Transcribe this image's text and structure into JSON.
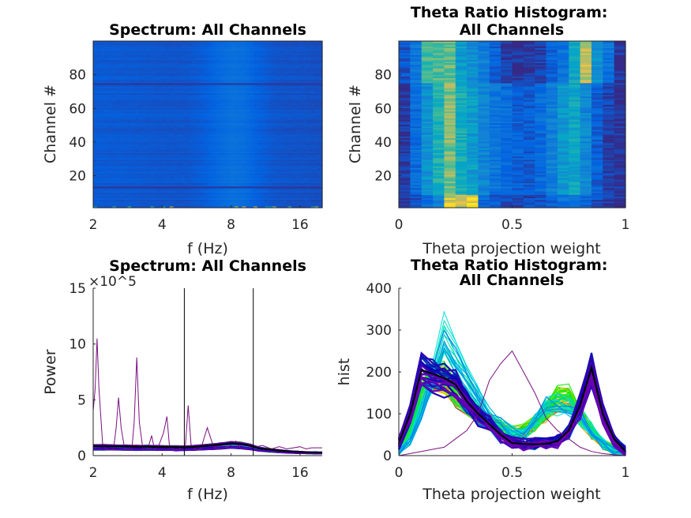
{
  "chart_data": [
    {
      "type": "heatmap",
      "title": "Spectrum: All Channels",
      "xlabel": "f (Hz)",
      "ylabel": "Channel #",
      "x_scale": "log",
      "xlim": [
        2,
        20
      ],
      "ylim": [
        1,
        100
      ],
      "xticks": [
        2,
        4,
        8,
        16
      ],
      "xtick_labels": [
        "2",
        "4",
        "8",
        "16"
      ],
      "yticks": [
        20,
        40,
        60,
        80
      ],
      "ytick_labels": [
        "20",
        "40",
        "60",
        "80"
      ],
      "colormap": "parula",
      "freq_profile_f": [
        2,
        3,
        4,
        5,
        6,
        7,
        8,
        9,
        10,
        12,
        14,
        16,
        18,
        20
      ],
      "freq_profile_level": [
        0.17,
        0.16,
        0.15,
        0.15,
        0.18,
        0.24,
        0.28,
        0.26,
        0.2,
        0.15,
        0.14,
        0.14,
        0.13,
        0.13
      ],
      "dark_rows": [
        13,
        75
      ]
    },
    {
      "type": "heatmap",
      "title": "Theta Ratio Histogram: All Channels",
      "xlabel": "Theta projection weight",
      "ylabel": "Channel #",
      "xlim": [
        0,
        1
      ],
      "ylim": [
        1,
        100
      ],
      "xticks": [
        0,
        0.5,
        1
      ],
      "xtick_labels": [
        "0",
        "0.5",
        "1"
      ],
      "yticks": [
        20,
        40,
        60,
        80
      ],
      "ytick_labels": [
        "20",
        "40",
        "60",
        "80"
      ],
      "colormap": "parula",
      "column_profile_channels_1_75": [
        0.05,
        0.25,
        0.45,
        0.62,
        0.78,
        0.6,
        0.5,
        0.4,
        0.3,
        0.25,
        0.2,
        0.18,
        0.25,
        0.35,
        0.48,
        0.55,
        0.4,
        0.2,
        0.08,
        0.03
      ],
      "column_profile_channels_76_100": [
        0.15,
        0.3,
        0.7,
        0.72,
        0.75,
        0.5,
        0.45,
        0.35,
        0.2,
        0.08,
        0.05,
        0.05,
        0.08,
        0.2,
        0.3,
        0.55,
        0.85,
        0.45,
        0.3,
        0.05
      ]
    },
    {
      "type": "line",
      "title": "Spectrum: All Channels",
      "xlabel": "f (Hz)",
      "ylabel": "Power",
      "exponent_label": "×10^5",
      "x_scale": "log",
      "xlim": [
        2,
        20
      ],
      "ylim": [
        0,
        15
      ],
      "xticks": [
        2,
        4,
        8,
        16
      ],
      "xtick_labels": [
        "2",
        "4",
        "8",
        "16"
      ],
      "yticks": [
        0,
        5,
        10,
        15
      ],
      "ytick_labels": [
        "0",
        "5",
        "10",
        "15"
      ],
      "vertical_lines_hz": [
        5,
        10
      ],
      "f": [
        2,
        2.2,
        2.5,
        2.8,
        3.1,
        3.4,
        3.8,
        4.2,
        4.6,
        5,
        5.5,
        6,
        6.6,
        7.2,
        8,
        8.8,
        9.7,
        10.6,
        11.7,
        12.9,
        14.2,
        15.6,
        17.2,
        18.9,
        20
      ],
      "mean_power": [
        0.85,
        0.85,
        0.83,
        0.82,
        0.8,
        0.8,
        0.78,
        0.77,
        0.76,
        0.75,
        0.78,
        0.85,
        0.92,
        1.0,
        1.08,
        1.05,
        0.9,
        0.65,
        0.55,
        0.45,
        0.38,
        0.33,
        0.3,
        0.28,
        0.27
      ],
      "outlier_f": [
        2,
        2.04,
        2.08,
        2.12,
        2.2,
        2.3,
        2.45,
        2.52,
        2.58,
        2.65,
        2.75,
        2.95,
        3.02,
        3.1,
        3.18,
        3.3,
        3.45,
        3.6,
        3.7,
        3.85,
        4.05,
        4.2,
        4.3,
        4.5,
        4.8,
        5.05,
        5.2,
        5.35,
        5.6,
        5.9,
        6.3,
        6.7,
        7.2,
        7.8,
        8.4,
        8.8,
        9.5,
        10.2,
        11,
        12,
        13,
        14,
        15,
        16,
        17,
        18,
        19,
        20
      ],
      "outlier_power": [
        4,
        6,
        10.5,
        6,
        1,
        0.5,
        0.5,
        2.5,
        5.2,
        2.5,
        0.5,
        0.5,
        3,
        8.8,
        3,
        0.5,
        0.5,
        1.8,
        0.6,
        0.8,
        2,
        3.5,
        1,
        0.5,
        0.6,
        0.8,
        4.5,
        1,
        0.5,
        0.6,
        2.5,
        0.8,
        0.6,
        0.8,
        1.3,
        0.6,
        0.7,
        0.8,
        0.9,
        0.6,
        0.8,
        0.6,
        0.7,
        0.8,
        0.6,
        0.7,
        0.7,
        0.7
      ]
    },
    {
      "type": "line",
      "title": "Theta Ratio Histogram: All Channels",
      "xlabel": "Theta projection weight",
      "ylabel": "hist",
      "xlim": [
        0,
        1
      ],
      "ylim": [
        0,
        400
      ],
      "xticks": [
        0,
        0.5,
        1
      ],
      "xtick_labels": [
        "0",
        "0.5",
        "1"
      ],
      "yticks": [
        0,
        100,
        200,
        300,
        400
      ],
      "ytick_labels": [
        "0",
        "100",
        "200",
        "300",
        "400"
      ],
      "x": [
        0,
        0.05,
        0.1,
        0.15,
        0.2,
        0.25,
        0.3,
        0.35,
        0.4,
        0.45,
        0.5,
        0.55,
        0.6,
        0.65,
        0.7,
        0.75,
        0.8,
        0.85,
        0.9,
        0.95,
        1
      ],
      "mean_hist": [
        30,
        100,
        205,
        195,
        185,
        170,
        130,
        100,
        75,
        50,
        30,
        28,
        27,
        28,
        35,
        60,
        120,
        210,
        100,
        40,
        10
      ],
      "group_a_hist": [
        20,
        60,
        150,
        200,
        190,
        150,
        120,
        100,
        80,
        70,
        55,
        60,
        80,
        110,
        140,
        140,
        100,
        60,
        30,
        15,
        5
      ],
      "group_b_hist": [
        10,
        40,
        110,
        200,
        300,
        250,
        200,
        150,
        100,
        80,
        60,
        60,
        90,
        130,
        130,
        120,
        100,
        60,
        30,
        10,
        5
      ],
      "outlier_hist": [
        0,
        5,
        10,
        15,
        20,
        40,
        60,
        100,
        180,
        220,
        250,
        200,
        150,
        90,
        60,
        40,
        20,
        10,
        5,
        2,
        0
      ]
    }
  ]
}
